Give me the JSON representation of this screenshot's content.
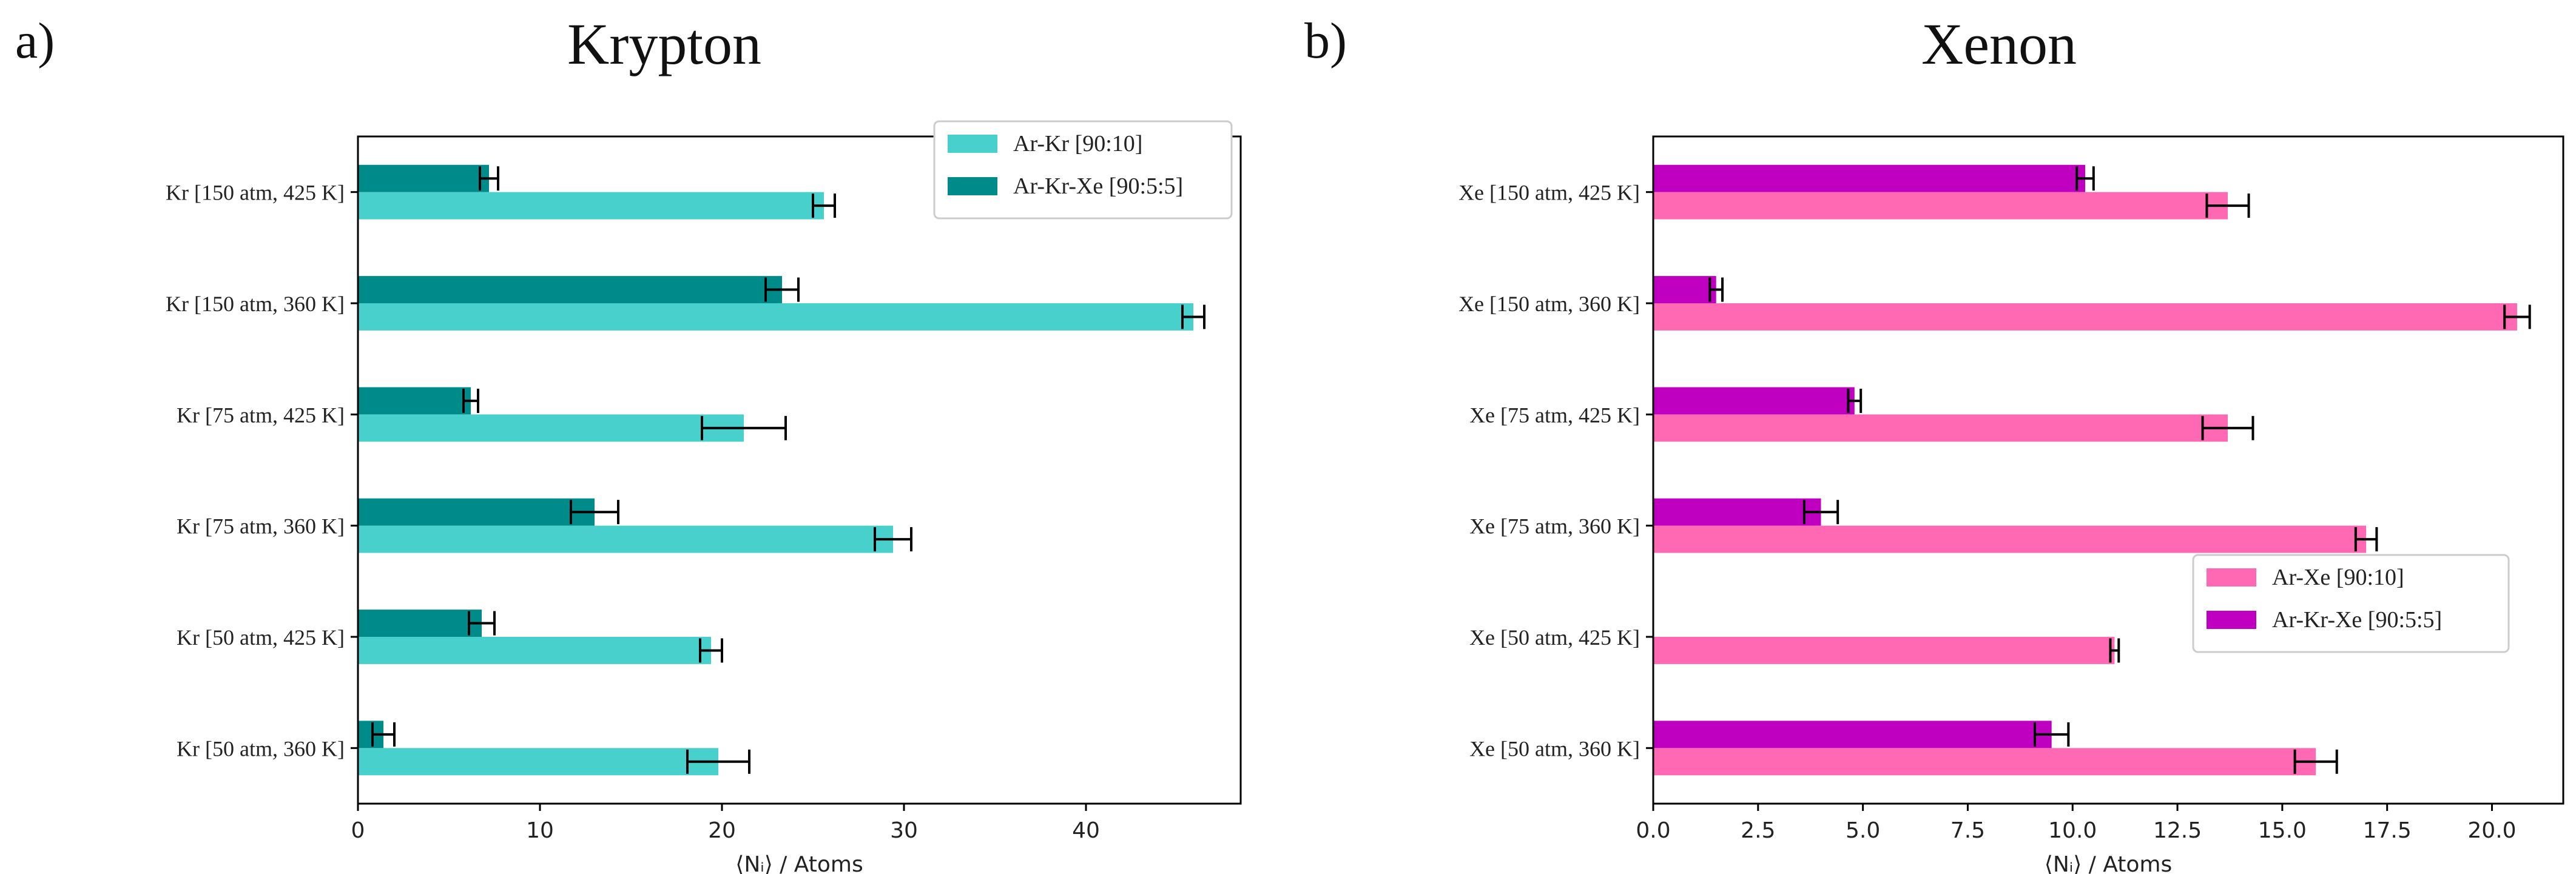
{
  "chart_data": [
    {
      "type": "bar",
      "orientation": "horizontal",
      "panel_label": "a)",
      "title": "Krypton",
      "xlabel": "⟨Nᵢ⟩ / Atoms",
      "ylabel": "",
      "xlim": [
        0,
        48.5
      ],
      "xticks": [
        0,
        10,
        20,
        30,
        40
      ],
      "xtick_labels": [
        "0",
        "10",
        "20",
        "30",
        "40"
      ],
      "categories": [
        "Kr [150 atm, 425 K]",
        "Kr [150 atm, 360 K]",
        "Kr [75 atm, 425 K]",
        "Kr [75 atm, 360 K]",
        "Kr [50 atm, 425 K]",
        "Kr [50 atm, 360 K]"
      ],
      "series": [
        {
          "name": "Ar-Kr [90:10]",
          "color": "#48d1cc",
          "values": [
            25.6,
            45.9,
            21.2,
            29.4,
            19.4,
            19.8
          ],
          "errors": [
            0.6,
            0.6,
            2.3,
            1.0,
            0.6,
            1.7
          ]
        },
        {
          "name": "Ar-Kr-Xe [90:5:5]",
          "color": "#008b8b",
          "values": [
            7.2,
            23.3,
            6.2,
            13.0,
            6.8,
            1.4
          ],
          "errors": [
            0.5,
            0.9,
            0.4,
            1.3,
            0.7,
            0.6
          ]
        }
      ],
      "legend_position": "top-right",
      "grid": false
    },
    {
      "type": "bar",
      "orientation": "horizontal",
      "panel_label": "b)",
      "title": "Xenon",
      "xlabel": "⟨Nᵢ⟩ / Atoms",
      "ylabel": "",
      "xlim": [
        0,
        21.7
      ],
      "xticks": [
        0,
        2.5,
        5,
        7.5,
        10,
        12.5,
        15,
        17.5,
        20
      ],
      "xtick_labels": [
        "0.0",
        "2.5",
        "5.0",
        "7.5",
        "10.0",
        "12.5",
        "15.0",
        "17.5",
        "20.0"
      ],
      "categories": [
        "Xe [150 atm, 425 K]",
        "Xe [150 atm, 360 K]",
        "Xe [75 atm, 425 K]",
        "Xe [75 atm, 360 K]",
        "Xe [50 atm, 425 K]",
        "Xe [50 atm, 360 K]"
      ],
      "series": [
        {
          "name": "Ar-Xe [90:10]",
          "color": "#ff69b4",
          "values": [
            13.7,
            20.6,
            13.7,
            17.0,
            11.0,
            15.8
          ],
          "errors": [
            0.5,
            0.3,
            0.6,
            0.25,
            0.1,
            0.5
          ]
        },
        {
          "name": "Ar-Kr-Xe [90:5:5]",
          "color": "#c000c0",
          "values": [
            10.3,
            1.5,
            4.8,
            4.0,
            null,
            9.5
          ],
          "errors": [
            0.2,
            0.15,
            0.15,
            0.4,
            null,
            0.4
          ]
        }
      ],
      "legend_position": "center-right",
      "grid": false
    }
  ]
}
